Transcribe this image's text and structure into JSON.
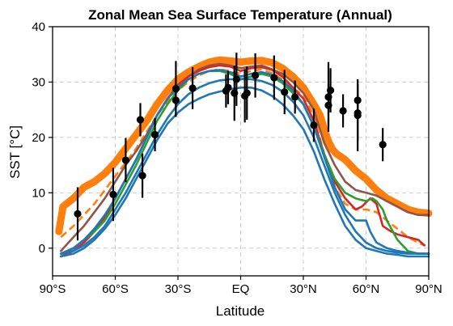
{
  "chart_data": {
    "type": "line",
    "title": "Zonal Mean Sea Surface Temperature (Annual)",
    "xlabel": "Latitude",
    "ylabel": "SST [°C]",
    "xlim": [
      -90,
      90
    ],
    "ylim": [
      -5,
      40
    ],
    "grid": true,
    "x_ticks": [
      -90,
      -60,
      -30,
      0,
      30,
      60,
      90
    ],
    "x_tick_labels": [
      "90°S",
      "60°S",
      "30°S",
      "EQ",
      "30°N",
      "60°N",
      "90°N"
    ],
    "y_ticks": [
      0,
      10,
      20,
      30,
      40
    ],
    "y_tick_labels": [
      "0",
      "10",
      "20",
      "30",
      "40"
    ],
    "series": [
      {
        "color": "#ff7f0e",
        "style": "solid",
        "width": "thick",
        "x": [
          -87,
          -85,
          -80,
          -75,
          -70,
          -65,
          -60,
          -55,
          -50,
          -45,
          -40,
          -35,
          -30,
          -25,
          -20,
          -15,
          -10,
          -5,
          0,
          5,
          10,
          15,
          20,
          25,
          30,
          35,
          38,
          40,
          42,
          44,
          46,
          48,
          50,
          55,
          60,
          65,
          70,
          75,
          80,
          85,
          90
        ],
        "values": [
          3,
          7.5,
          9,
          11,
          12,
          13.5,
          15.5,
          18,
          20.5,
          23,
          26,
          28.5,
          30.5,
          31.8,
          32.8,
          33.6,
          34,
          33.8,
          33.6,
          33.8,
          33.9,
          33.5,
          32.5,
          31,
          29,
          26,
          24,
          21.5,
          19.3,
          17.8,
          17,
          16.5,
          16,
          14,
          12.5,
          10.5,
          9,
          8,
          7,
          6.5,
          6.3
        ]
      },
      {
        "color": "#ff7f0e",
        "style": "dashed",
        "width": "normal",
        "x": [
          -86,
          -80,
          -75,
          -70,
          -65,
          -60,
          -55,
          -50,
          -45,
          -40,
          -35,
          -30,
          -25,
          -20,
          -15,
          -10,
          -5,
          0,
          5,
          10,
          15,
          20,
          25,
          30,
          35,
          40,
          45,
          50,
          55,
          60,
          65,
          70,
          75,
          80,
          85,
          88
        ],
        "values": [
          2,
          4,
          6,
          8,
          10.5,
          13,
          15.5,
          18,
          21,
          24,
          26.5,
          28.5,
          30,
          31.2,
          32,
          32.3,
          32,
          31.5,
          32,
          32.3,
          31.6,
          30.5,
          29,
          27.5,
          24,
          17,
          11,
          8,
          7,
          7,
          6.5,
          5,
          3.5,
          2,
          1,
          0.5
        ]
      },
      {
        "color": "#8c564b",
        "style": "solid",
        "width": "normal",
        "x": [
          -86,
          -80,
          -75,
          -70,
          -65,
          -60,
          -55,
          -50,
          -45,
          -40,
          -35,
          -30,
          -25,
          -20,
          -15,
          -10,
          -5,
          0,
          5,
          10,
          15,
          20,
          25,
          30,
          35,
          40,
          45,
          50,
          55,
          60,
          65,
          70,
          75,
          80,
          85,
          90
        ],
        "values": [
          -0.5,
          2,
          4,
          6.5,
          9,
          12,
          15,
          17.5,
          20.5,
          24,
          27,
          29.5,
          31,
          32.3,
          33,
          33.3,
          33,
          32.5,
          32.8,
          33,
          32.3,
          31.5,
          30,
          28,
          25,
          19,
          15,
          12,
          10.5,
          10,
          9.5,
          8.5,
          7.5,
          6.5,
          6,
          6
        ]
      },
      {
        "color": "#d62728",
        "style": "solid",
        "width": "normal",
        "x": [
          -86,
          -80,
          -75,
          -70,
          -65,
          -60,
          -55,
          -50,
          -45,
          -40,
          -35,
          -30,
          -25,
          -20,
          -15,
          -10,
          -5,
          0,
          5,
          10,
          15,
          20,
          25,
          30,
          35,
          40,
          45,
          50,
          55,
          58,
          62,
          65,
          68,
          72,
          75,
          80,
          85,
          88
        ],
        "values": [
          -1.5,
          -0.5,
          1,
          3,
          5.5,
          9,
          12.5,
          16,
          20,
          24,
          27,
          29.5,
          31,
          32,
          32.7,
          33,
          32.8,
          32,
          32.5,
          32.7,
          32.2,
          31,
          29,
          27,
          23,
          17,
          12,
          9,
          7,
          7.5,
          9,
          8,
          4,
          3,
          2.5,
          2,
          1.5,
          0.5
        ]
      },
      {
        "color": "#2ca02c",
        "style": "solid",
        "width": "normal",
        "x": [
          -86,
          -80,
          -75,
          -70,
          -65,
          -60,
          -55,
          -50,
          -45,
          -40,
          -35,
          -30,
          -25,
          -20,
          -15,
          -10,
          -5,
          0,
          5,
          10,
          15,
          20,
          25,
          30,
          35,
          40,
          45,
          50,
          55,
          60,
          63,
          65,
          68,
          70,
          75,
          80,
          85,
          88
        ],
        "values": [
          -1,
          0,
          1.5,
          3,
          5,
          8,
          11.5,
          15,
          19,
          23,
          26,
          28.5,
          30.5,
          31.5,
          32,
          32,
          31.5,
          30.5,
          31,
          31.5,
          31,
          29.8,
          28,
          26,
          22,
          17,
          12.5,
          10,
          9,
          8.5,
          9,
          8.5,
          7,
          5,
          1.5,
          -0.5,
          -1,
          -1
        ]
      },
      {
        "color": "#1f77b4",
        "style": "solid",
        "width": "normal",
        "x": [
          -86,
          -80,
          -75,
          -70,
          -65,
          -60,
          -55,
          -50,
          -45,
          -40,
          -35,
          -30,
          -25,
          -20,
          -15,
          -10,
          -5,
          0,
          5,
          10,
          15,
          20,
          25,
          30,
          35,
          40,
          45,
          50,
          55,
          60,
          62,
          65,
          70,
          75,
          80,
          85,
          90
        ],
        "values": [
          -1,
          0,
          1.5,
          3.5,
          6,
          9,
          12.5,
          16,
          20,
          24,
          27,
          29,
          30.5,
          31.5,
          32,
          32.2,
          31.8,
          31,
          31.5,
          31.8,
          31.3,
          30.2,
          28.5,
          26,
          22,
          16.5,
          11,
          7,
          5,
          5,
          3,
          1,
          0,
          -0.5,
          -0.8,
          -1,
          -1
        ]
      },
      {
        "color": "#1f77b4",
        "style": "solid",
        "width": "normal",
        "x": [
          -86,
          -80,
          -75,
          -70,
          -65,
          -60,
          -55,
          -50,
          -45,
          -40,
          -35,
          -30,
          -25,
          -20,
          -15,
          -10,
          -5,
          0,
          5,
          10,
          15,
          20,
          25,
          30,
          35,
          40,
          45,
          50,
          55,
          60,
          65,
          70,
          75,
          80,
          85,
          90
        ],
        "values": [
          -1.5,
          -1,
          0,
          1.5,
          3.5,
          6,
          9,
          12.5,
          16,
          19.5,
          22.5,
          24.5,
          26,
          27,
          27.8,
          28.3,
          28.7,
          29,
          29,
          28.5,
          27.5,
          26,
          24,
          21.5,
          17.5,
          12.5,
          8,
          4,
          1.5,
          0,
          -0.5,
          -1,
          -1.2,
          -1.5,
          -1.5,
          -1.5
        ]
      },
      {
        "color": "#1f77b4",
        "style": "solid",
        "width": "normal",
        "x": [
          -86,
          -80,
          -75,
          -70,
          -65,
          -60,
          -55,
          -50,
          -45,
          -40,
          -35,
          -30,
          -25,
          -20,
          -15,
          -10,
          -5,
          0,
          5,
          10,
          15,
          20,
          25,
          30,
          35,
          40,
          45,
          50,
          55,
          60,
          65,
          70,
          75,
          80,
          85,
          90
        ],
        "values": [
          -1,
          -0.5,
          0.5,
          2,
          4,
          7,
          10,
          13.5,
          17,
          20.5,
          23.5,
          26,
          27.8,
          29,
          29.8,
          30.3,
          30.5,
          30.5,
          30.5,
          30.2,
          29.5,
          28.3,
          26.5,
          24,
          20,
          15,
          10,
          6,
          3,
          1,
          0,
          -0.5,
          -0.8,
          -1,
          -1,
          -1
        ]
      }
    ],
    "observations": {
      "color": "#000000",
      "points": [
        {
          "x": -78,
          "y": 6.2,
          "err": 4.8
        },
        {
          "x": -61,
          "y": 9.7,
          "err": 4.8
        },
        {
          "x": -55,
          "y": 15.9,
          "err": 4.0
        },
        {
          "x": -48,
          "y": 23.2,
          "err": 3.0
        },
        {
          "x": -47,
          "y": 13.1,
          "err": 4.0
        },
        {
          "x": -41,
          "y": 20.5,
          "err": 3.0
        },
        {
          "x": -31,
          "y": 28.8,
          "err": 5.0
        },
        {
          "x": -31,
          "y": 26.7,
          "err": 3.0
        },
        {
          "x": -23,
          "y": 28.9,
          "err": 3.8
        },
        {
          "x": -7,
          "y": 28.4,
          "err": 3.0
        },
        {
          "x": -6,
          "y": 29.0,
          "err": 3.0
        },
        {
          "x": -3,
          "y": 28.0,
          "err": 5.0
        },
        {
          "x": -2,
          "y": 30.5,
          "err": 4.8
        },
        {
          "x": 2,
          "y": 27.5,
          "err": 4.8
        },
        {
          "x": 3,
          "y": 28.0,
          "err": 4.8
        },
        {
          "x": 7,
          "y": 31.2,
          "err": 4.0
        },
        {
          "x": 16,
          "y": 30.8,
          "err": 4.0
        },
        {
          "x": 21,
          "y": 28.2,
          "err": 4.0
        },
        {
          "x": 26,
          "y": 27.3,
          "err": 3.0
        },
        {
          "x": 35,
          "y": 22.2,
          "err": 3.0
        },
        {
          "x": 42,
          "y": 27.3,
          "err": 6.3
        },
        {
          "x": 42,
          "y": 25.8,
          "err": 3.8
        },
        {
          "x": 43,
          "y": 28.5,
          "err": 4.0
        },
        {
          "x": 49,
          "y": 24.8,
          "err": 3.0
        },
        {
          "x": 56,
          "y": 26.7,
          "err": 3.0
        },
        {
          "x": 56,
          "y": 24.4,
          "err": 5.0
        },
        {
          "x": 56,
          "y": 24.0,
          "err": 6.5
        },
        {
          "x": 68,
          "y": 18.7,
          "err": 3.0
        }
      ]
    }
  }
}
